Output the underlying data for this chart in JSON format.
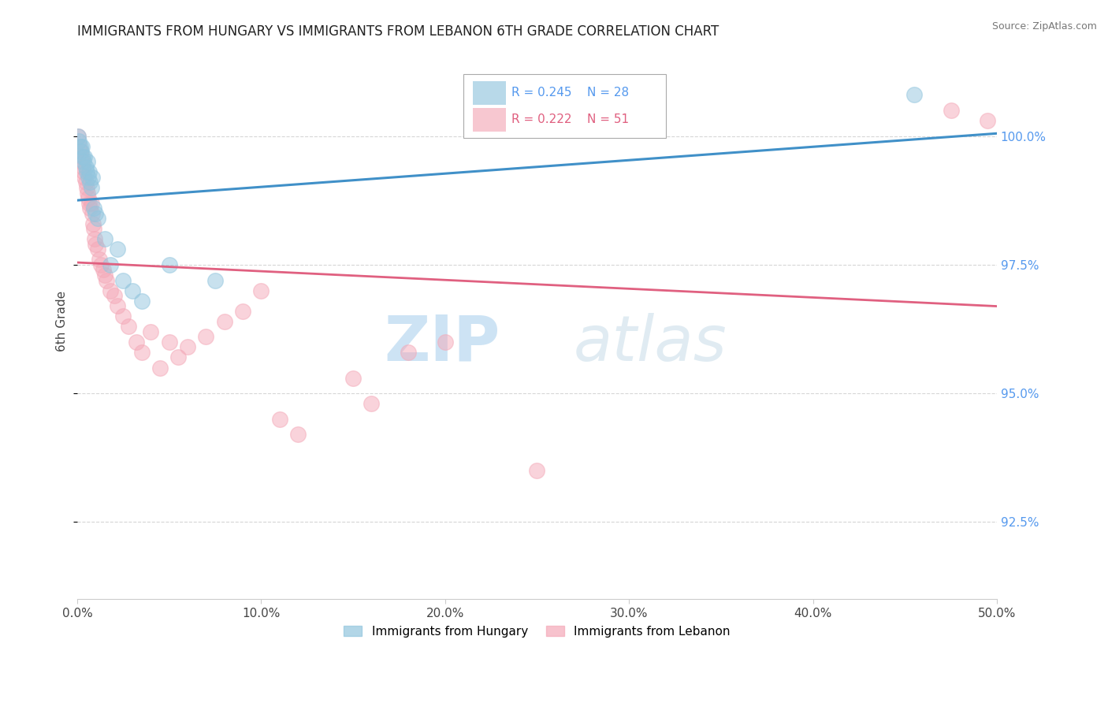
{
  "title": "IMMIGRANTS FROM HUNGARY VS IMMIGRANTS FROM LEBANON 6TH GRADE CORRELATION CHART",
  "source": "Source: ZipAtlas.com",
  "ylabel": "6th Grade",
  "xlim": [
    0.0,
    50.0
  ],
  "ylim": [
    91.0,
    101.8
  ],
  "yticks": [
    92.5,
    95.0,
    97.5,
    100.0
  ],
  "xticks": [
    0.0,
    10.0,
    20.0,
    30.0,
    40.0,
    50.0
  ],
  "xtick_labels": [
    "0.0%",
    "10.0%",
    "20.0%",
    "30.0%",
    "40.0%",
    "50.0%"
  ],
  "ytick_labels": [
    "92.5%",
    "95.0%",
    "97.5%",
    "100.0%"
  ],
  "legend_r_hungary": "R = 0.245",
  "legend_n_hungary": "N = 28",
  "legend_r_lebanon": "R = 0.222",
  "legend_n_lebanon": "N = 51",
  "hungary_color": "#92c5de",
  "lebanon_color": "#f4a9b8",
  "hungary_line_color": "#4090c8",
  "lebanon_line_color": "#e06080",
  "background_color": "#ffffff",
  "watermark_zip": "ZIP",
  "watermark_atlas": "atlas",
  "hungary_x": [
    0.05,
    0.1,
    0.15,
    0.2,
    0.25,
    0.3,
    0.35,
    0.4,
    0.45,
    0.5,
    0.55,
    0.6,
    0.65,
    0.7,
    0.75,
    0.8,
    0.9,
    1.0,
    1.1,
    1.5,
    1.8,
    2.2,
    2.5,
    3.0,
    3.5,
    5.0,
    7.5,
    45.5
  ],
  "hungary_y": [
    100.0,
    99.9,
    99.8,
    99.7,
    99.8,
    99.6,
    99.5,
    99.6,
    99.4,
    99.3,
    99.5,
    99.2,
    99.3,
    99.1,
    99.0,
    99.2,
    98.6,
    98.5,
    98.4,
    98.0,
    97.5,
    97.8,
    97.2,
    97.0,
    96.8,
    97.5,
    97.2,
    100.8
  ],
  "lebanon_x": [
    0.05,
    0.1,
    0.15,
    0.2,
    0.25,
    0.3,
    0.35,
    0.4,
    0.45,
    0.5,
    0.55,
    0.6,
    0.65,
    0.7,
    0.75,
    0.8,
    0.85,
    0.9,
    0.95,
    1.0,
    1.1,
    1.2,
    1.3,
    1.4,
    1.5,
    1.6,
    1.8,
    2.0,
    2.2,
    2.5,
    2.8,
    3.2,
    3.5,
    4.0,
    4.5,
    5.0,
    5.5,
    6.0,
    7.0,
    8.0,
    9.0,
    10.0,
    11.0,
    12.0,
    15.0,
    16.0,
    18.0,
    20.0,
    25.0,
    47.5,
    49.5
  ],
  "lebanon_y": [
    100.0,
    99.8,
    99.7,
    99.6,
    99.5,
    99.4,
    99.3,
    99.2,
    99.1,
    99.0,
    98.9,
    98.8,
    98.7,
    98.6,
    98.7,
    98.5,
    98.3,
    98.2,
    98.0,
    97.9,
    97.8,
    97.6,
    97.5,
    97.4,
    97.3,
    97.2,
    97.0,
    96.9,
    96.7,
    96.5,
    96.3,
    96.0,
    95.8,
    96.2,
    95.5,
    96.0,
    95.7,
    95.9,
    96.1,
    96.4,
    96.6,
    97.0,
    94.5,
    94.2,
    95.3,
    94.8,
    95.8,
    96.0,
    93.5,
    100.5,
    100.3
  ]
}
